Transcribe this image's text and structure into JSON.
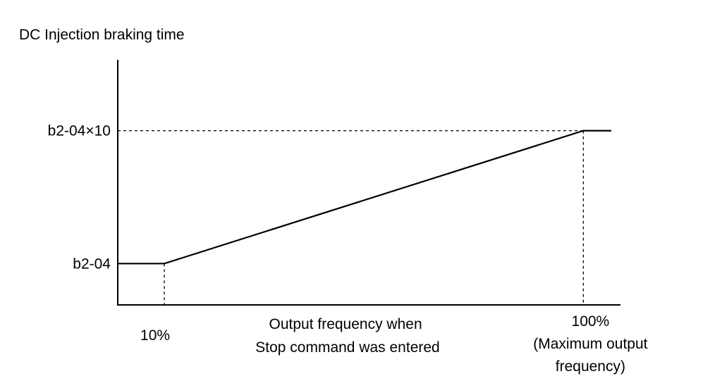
{
  "chart_data": {
    "type": "line",
    "title": "DC Injection braking time",
    "xlabel": [
      "Output frequency when",
      "Stop command was entered"
    ],
    "x_ticks": [
      {
        "value": 10,
        "lines": [
          "10%"
        ]
      },
      {
        "value": 100,
        "lines": [
          "100%",
          "(Maximum output",
          "frequency)"
        ]
      }
    ],
    "y_ticks": [
      {
        "value": 1,
        "label": "b2-04"
      },
      {
        "value": 10,
        "label": "b2-04×10"
      }
    ],
    "series": [
      {
        "x": [
          0,
          10,
          100,
          106
        ],
        "y": [
          1,
          1,
          10,
          10
        ]
      }
    ],
    "xlim": [
      0,
      106
    ],
    "ylim": [
      -1.8,
      14.8
    ],
    "grid": false,
    "guide_lines": "dashed"
  }
}
